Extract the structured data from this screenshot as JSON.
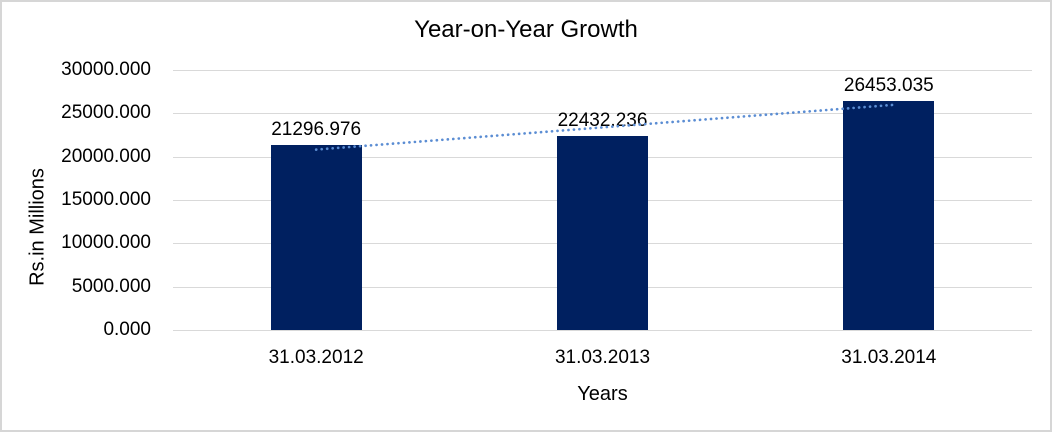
{
  "window": {
    "background_color": "#FFFFFF",
    "border_color": "#D6D6D6"
  },
  "chart_data": {
    "type": "bar",
    "title": "Year-on-Year Growth",
    "xlabel": "Years",
    "ylabel": "Rs.in Millions",
    "categories": [
      "31.03.2012",
      "31.03.2013",
      "31.03.2014"
    ],
    "values": [
      21296.976,
      22432.236,
      26453.035
    ],
    "data_labels": [
      "21296.976",
      "22432.236",
      "26453.035"
    ],
    "ylim": [
      0,
      30000
    ],
    "ytick_values": [
      0,
      5000,
      10000,
      15000,
      20000,
      25000,
      30000
    ],
    "ytick_labels": [
      "0.000",
      "5000.000",
      "10000.000",
      "15000.000",
      "20000.000",
      "25000.000",
      "30000.000"
    ],
    "grid": true,
    "legend": false,
    "bar_color": "#002060",
    "gridline_color": "#D9D9D9",
    "text_color": "#000000",
    "trendline": {
      "type": "linear",
      "style": "dotted",
      "color": "#5B8DD3"
    }
  }
}
